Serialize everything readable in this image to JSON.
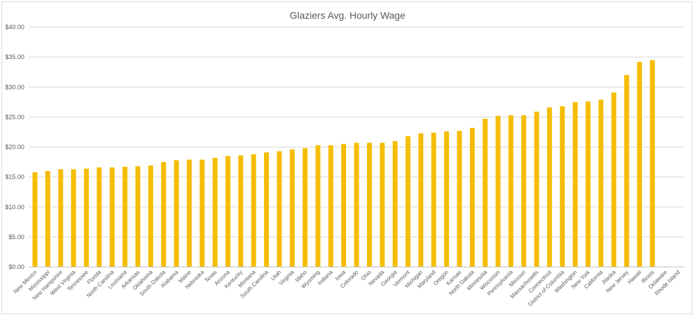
{
  "chart_data": {
    "type": "bar",
    "title": "Glaziers Avg. Hourly Wage",
    "xlabel": "",
    "ylabel": "",
    "ylim": [
      0,
      40
    ],
    "y_ticks": [
      "$0.00",
      "$5.00",
      "$10.00",
      "$15.00",
      "$20.00",
      "$25.00",
      "$30.00",
      "$35.00",
      "$40.00"
    ],
    "grid": true,
    "legend": "none",
    "bar_color": "#f5bd02",
    "categories": [
      "New Mexico",
      "Mississippi",
      "New Hampshire",
      "West Virginia",
      "Tennessee",
      "Florida",
      "North Carolina",
      "Louisiana",
      "Arkansas",
      "Oklahoma",
      "South Dakota",
      "Alabama",
      "Maine",
      "Nebraska",
      "Texas",
      "Arizona",
      "Kentucky",
      "Montana",
      "South Carolina",
      "Utah",
      "Virginia",
      "Idaho",
      "Wyoming",
      "Indiana",
      "Iowa",
      "Colorado",
      "Ohio",
      "Nevada",
      "Georgia",
      "Vermont",
      "Michigan",
      "Maryland",
      "Oregon",
      "Kansas",
      "North Dakota",
      "Minnesota",
      "Wisconsin",
      "Pennsylvania",
      "Missouri",
      "Massachusetts",
      "Connecticut",
      "District of Columbia",
      "Washington",
      "New York",
      "California",
      "Alaska",
      "New Jersey",
      "Hawaii",
      "Illinois",
      "Delaware",
      "Rhode Island"
    ],
    "values": [
      15.8,
      16.0,
      16.3,
      16.3,
      16.4,
      16.6,
      16.6,
      16.7,
      16.8,
      16.9,
      17.5,
      17.8,
      17.9,
      17.9,
      18.2,
      18.5,
      18.6,
      18.8,
      19.1,
      19.3,
      19.6,
      19.8,
      20.3,
      20.3,
      20.5,
      20.7,
      20.7,
      20.7,
      21.0,
      21.8,
      22.3,
      22.4,
      22.6,
      22.7,
      23.2,
      24.7,
      25.2,
      25.3,
      25.3,
      25.9,
      26.6,
      26.8,
      27.5,
      27.6,
      27.9,
      29.1,
      32.0,
      34.2,
      34.5,
      null,
      null
    ]
  }
}
